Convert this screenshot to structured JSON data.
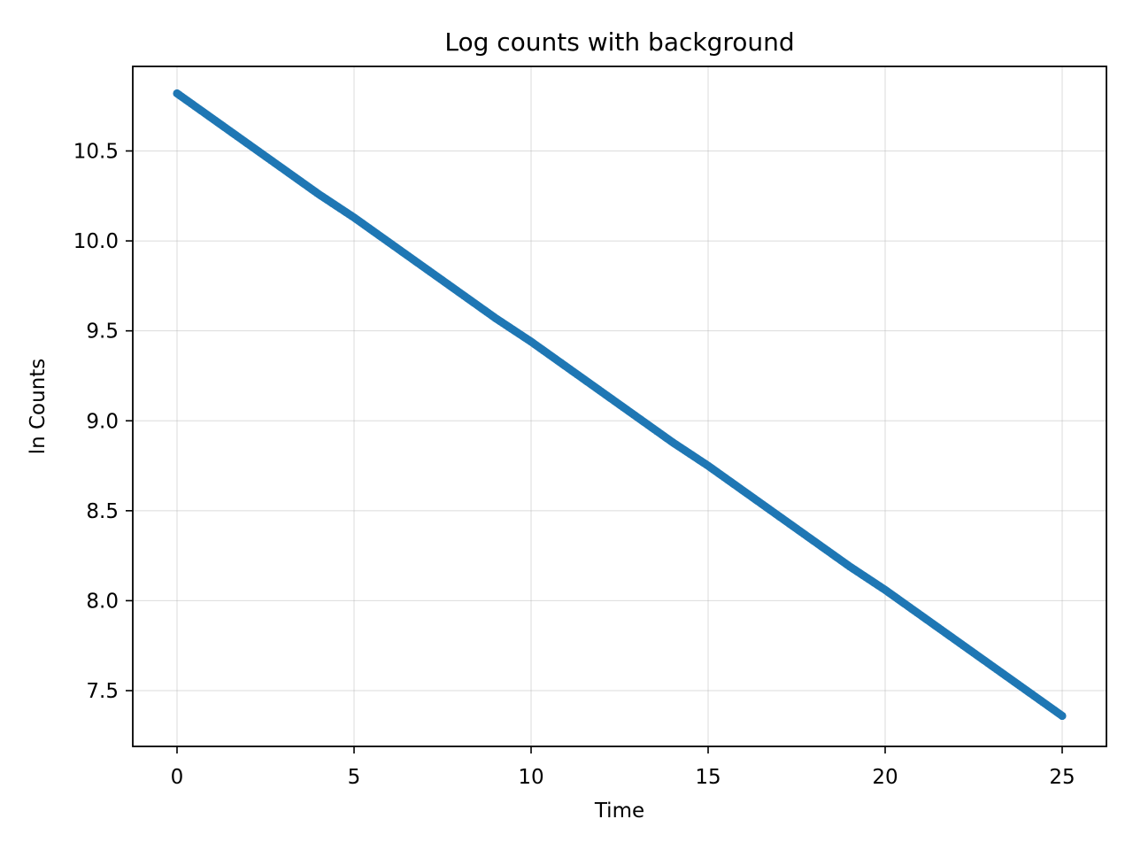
{
  "chart_data": {
    "type": "scatter",
    "title": "Log counts with background",
    "xlabel": "Time",
    "ylabel": "ln Counts",
    "xlim": [
      -1.25,
      26.25
    ],
    "ylim": [
      7.19,
      10.97
    ],
    "x_ticks": [
      0,
      5,
      10,
      15,
      20,
      25
    ],
    "x_tick_labels": [
      "0",
      "5",
      "10",
      "15",
      "20",
      "25"
    ],
    "y_ticks": [
      7.5,
      8.0,
      8.5,
      9.0,
      9.5,
      10.0,
      10.5
    ],
    "y_tick_labels": [
      "7.5",
      "8.0",
      "8.5",
      "9.0",
      "9.5",
      "10.0",
      "10.5"
    ],
    "grid": true,
    "marker_color": "#1f77b4",
    "x": [
      0,
      1,
      2,
      3,
      4,
      5,
      6,
      7,
      8,
      9,
      10,
      11,
      12,
      13,
      14,
      15,
      16,
      17,
      18,
      19,
      20,
      21,
      22,
      23,
      24,
      25
    ],
    "y": [
      10.82,
      10.68,
      10.54,
      10.4,
      10.26,
      10.13,
      9.99,
      9.85,
      9.71,
      9.57,
      9.44,
      9.3,
      9.16,
      9.02,
      8.88,
      8.75,
      8.61,
      8.47,
      8.33,
      8.19,
      8.06,
      7.92,
      7.78,
      7.64,
      7.5,
      7.36
    ]
  }
}
